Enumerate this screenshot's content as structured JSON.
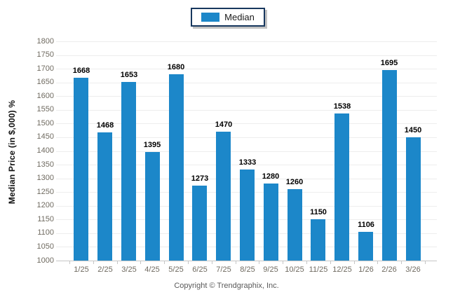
{
  "legend": {
    "label": "Median"
  },
  "y_axis": {
    "title": "Median Price (in $,000) %"
  },
  "footer": {
    "text": "Copyright © Trendgraphix, Inc."
  },
  "colors": {
    "bar": "#1c87c9",
    "legend_border": "#17375e",
    "gridline": "#ededed",
    "axis_line": "#c6c6c6",
    "tick_label_text": "#6f6a60",
    "value_label_text": "#000000",
    "footer_text": "#595959"
  },
  "chart_data": {
    "type": "bar",
    "title": "",
    "xlabel": "",
    "ylabel": "Median Price (in $,000) %",
    "categories": [
      "1/25",
      "2/25",
      "3/25",
      "4/25",
      "5/25",
      "6/25",
      "7/25",
      "8/25",
      "9/25",
      "10/25",
      "11/25",
      "12/25",
      "1/26",
      "2/26",
      "3/26"
    ],
    "series": [
      {
        "name": "Median",
        "values": [
          1668,
          1468,
          1653,
          1395,
          1680,
          1273,
          1470,
          1333,
          1280,
          1260,
          1150,
          1538,
          1106,
          1695,
          1450
        ]
      }
    ],
    "ylim": [
      1000,
      1800
    ],
    "ytick_step": 50,
    "grid": true,
    "value_labels": true,
    "legend_entries": [
      "Median"
    ],
    "legend_position": "top-center"
  }
}
